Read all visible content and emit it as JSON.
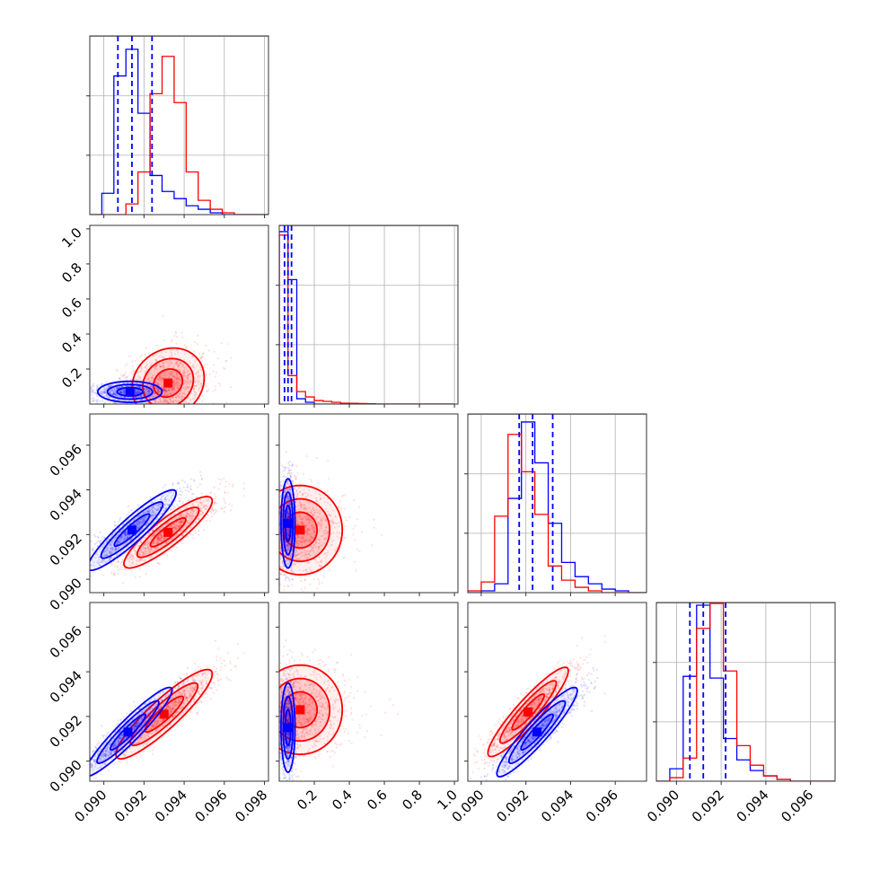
{
  "chart_data": {
    "type": "scatter",
    "plot_kind": "corner",
    "grid": true,
    "colors": {
      "blue": "#0000ff",
      "red": "#ff0000"
    },
    "parameters": [
      {
        "id": "p0",
        "range": [
          0.0893,
          0.0982
        ],
        "ticks": [
          0.09,
          0.092,
          0.094,
          0.096,
          0.098
        ],
        "tick_labels": [
          "0.090",
          "0.092",
          "0.094",
          "0.096",
          "0.098"
        ]
      },
      {
        "id": "p1",
        "range": [
          0.0,
          1.02
        ],
        "ticks": [
          0.2,
          0.4,
          0.6,
          0.8,
          1.0
        ],
        "tick_labels": [
          "0.2",
          "0.4",
          "0.6",
          "0.8",
          "1.0"
        ]
      },
      {
        "id": "p2",
        "range": [
          0.0894,
          0.0974
        ],
        "ticks": [
          0.09,
          0.092,
          0.094,
          0.096
        ],
        "tick_labels": [
          "0.090",
          "0.092",
          "0.094",
          "0.096"
        ]
      },
      {
        "id": "p3",
        "range": [
          0.0891,
          0.0971
        ],
        "ticks": [
          0.09,
          0.092,
          0.094,
          0.096
        ],
        "tick_labels": [
          "0.090",
          "0.092",
          "0.094",
          "0.096"
        ]
      }
    ],
    "marginals": [
      {
        "param": 0,
        "edges": [
          0.0893,
          0.0899,
          0.0905,
          0.0911,
          0.0917,
          0.0923,
          0.0929,
          0.0935,
          0.0941,
          0.0947,
          0.0953,
          0.0959,
          0.0965,
          0.0971,
          0.0977,
          0.0982
        ],
        "series": [
          {
            "color": "blue",
            "counts": [
              0.0,
              0.12,
              0.78,
              0.93,
              0.57,
              0.22,
              0.13,
              0.09,
              0.05,
              0.03,
              0.01,
              0.0,
              0.0,
              0.0,
              0.0
            ]
          },
          {
            "color": "red",
            "counts": [
              0.0,
              0.0,
              0.0,
              0.06,
              0.24,
              0.68,
              0.89,
              0.63,
              0.24,
              0.08,
              0.03,
              0.01,
              0.0,
              0.0,
              0.0
            ]
          }
        ],
        "quantiles_blue": [
          0.0907,
          0.0914,
          0.0924
        ]
      },
      {
        "param": 1,
        "edges": [
          0.0,
          0.05,
          0.1,
          0.15,
          0.2,
          0.25,
          0.3,
          0.35,
          0.4,
          0.45,
          0.5,
          0.55,
          0.6,
          0.65,
          0.7,
          0.75,
          0.8,
          0.85,
          0.9,
          0.95,
          1.0
        ],
        "series": [
          {
            "color": "blue",
            "counts": [
              0.97,
              0.7,
              0.03,
              0.01,
              0.0,
              0.0,
              0.0,
              0.0,
              0.0,
              0.0,
              0.0,
              0.0,
              0.0,
              0.0,
              0.0,
              0.0,
              0.0,
              0.0,
              0.0,
              0.0
            ]
          },
          {
            "color": "red",
            "counts": [
              0.95,
              0.16,
              0.07,
              0.04,
              0.02,
              0.015,
              0.01,
              0.005,
              0.004,
              0.003,
              0.002,
              0.0,
              0.0,
              0.0,
              0.0,
              0.0,
              0.0,
              0.0,
              0.0,
              0.0
            ]
          }
        ],
        "quantiles_blue": [
          0.03,
          0.05,
          0.07
        ]
      },
      {
        "param": 2,
        "edges": [
          0.0894,
          0.09,
          0.0906,
          0.0912,
          0.0918,
          0.0924,
          0.093,
          0.0936,
          0.0942,
          0.0948,
          0.0954,
          0.096,
          0.0966,
          0.0974
        ],
        "series": [
          {
            "color": "blue",
            "counts": [
              0.0,
              0.01,
              0.05,
              0.53,
              0.96,
              0.73,
              0.39,
              0.17,
              0.09,
              0.05,
              0.02,
              0.01,
              0.0
            ]
          },
          {
            "color": "red",
            "counts": [
              0.01,
              0.06,
              0.43,
              0.89,
              0.68,
              0.44,
              0.15,
              0.07,
              0.03,
              0.01,
              0.0,
              0.0,
              0.0
            ]
          }
        ],
        "quantiles_blue": [
          0.0917,
          0.0923,
          0.0932
        ]
      },
      {
        "param": 3,
        "edges": [
          0.0891,
          0.0897,
          0.0903,
          0.0909,
          0.0915,
          0.0921,
          0.0927,
          0.0933,
          0.0939,
          0.0945,
          0.0951,
          0.0957,
          0.0963,
          0.0971
        ],
        "series": [
          {
            "color": "blue",
            "counts": [
              0.0,
              0.07,
              0.59,
              0.99,
              0.58,
              0.24,
              0.12,
              0.06,
              0.03,
              0.01,
              0.0,
              0.0,
              0.0
            ]
          },
          {
            "color": "red",
            "counts": [
              0.0,
              0.02,
              0.13,
              0.86,
              1.0,
              0.62,
              0.2,
              0.09,
              0.03,
              0.01,
              0.0,
              0.0,
              0.0
            ]
          }
        ],
        "quantiles_blue": [
          0.0906,
          0.0912,
          0.0922
        ]
      }
    ],
    "pairs": [
      {
        "x": 0,
        "y": 1,
        "blue": {
          "cx": 0.0913,
          "cy": 0.07,
          "sx": 0.0008,
          "sy": 0.03,
          "rho": 0.0
        },
        "red": {
          "cx": 0.0932,
          "cy": 0.12,
          "sx": 0.0009,
          "sy": 0.1,
          "rho": 0.15
        }
      },
      {
        "x": 0,
        "y": 2,
        "blue": {
          "cx": 0.0914,
          "cy": 0.0922,
          "sx": 0.0011,
          "sy": 0.0009,
          "rho": 0.92
        },
        "red": {
          "cx": 0.0932,
          "cy": 0.0921,
          "sx": 0.0011,
          "sy": 0.0008,
          "rho": 0.88
        }
      },
      {
        "x": 0,
        "y": 3,
        "blue": {
          "cx": 0.0912,
          "cy": 0.0913,
          "sx": 0.0011,
          "sy": 0.001,
          "rho": 0.94
        },
        "red": {
          "cx": 0.093,
          "cy": 0.0921,
          "sx": 0.0012,
          "sy": 0.001,
          "rho": 0.9
        }
      },
      {
        "x": 1,
        "y": 2,
        "blue": {
          "cx": 0.05,
          "cy": 0.0925,
          "sx": 0.02,
          "sy": 0.001,
          "rho": 0.0
        },
        "red": {
          "cx": 0.12,
          "cy": 0.0922,
          "sx": 0.12,
          "sy": 0.001,
          "rho": 0.0
        }
      },
      {
        "x": 1,
        "y": 3,
        "blue": {
          "cx": 0.05,
          "cy": 0.0915,
          "sx": 0.02,
          "sy": 0.001,
          "rho": 0.0
        },
        "red": {
          "cx": 0.12,
          "cy": 0.0923,
          "sx": 0.12,
          "sy": 0.001,
          "rho": 0.0
        }
      },
      {
        "x": 2,
        "y": 3,
        "blue": {
          "cx": 0.0925,
          "cy": 0.0913,
          "sx": 0.0009,
          "sy": 0.001,
          "rho": 0.93
        },
        "red": {
          "cx": 0.0921,
          "cy": 0.0922,
          "sx": 0.0009,
          "sy": 0.001,
          "rho": 0.92
        }
      }
    ]
  }
}
